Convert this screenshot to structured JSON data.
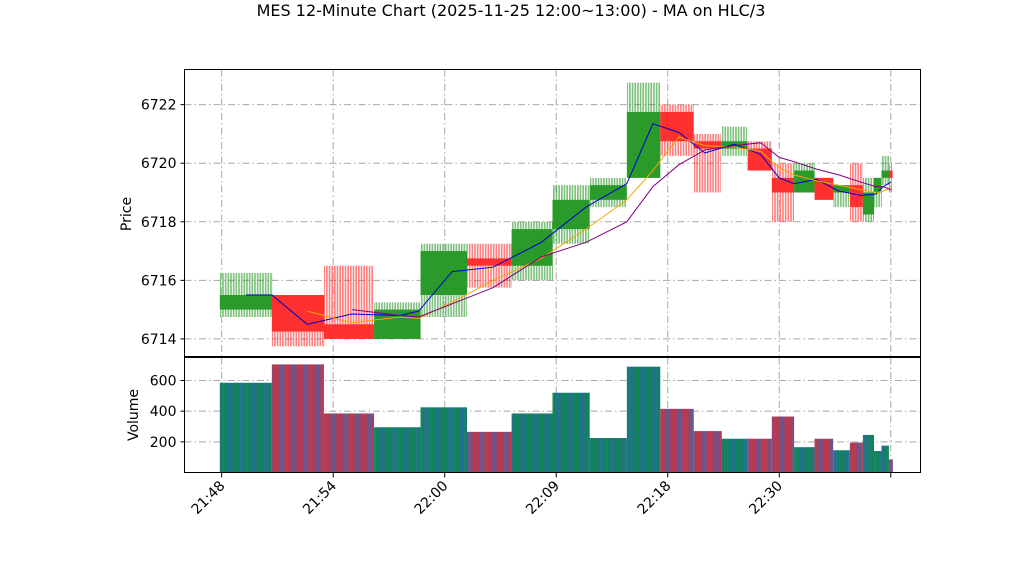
{
  "chart_data": {
    "type": "candlestick",
    "title": "MES 12-Minute Chart (2025-11-25 12:00~13:00) - MA on HLC/3",
    "price_panel": {
      "ylabel": "Price",
      "ylim": [
        6713.4,
        6723.2
      ],
      "yticks": [
        6714,
        6716,
        6718,
        6720,
        6722
      ],
      "grid": true
    },
    "volume_panel": {
      "ylabel": "Volume",
      "ylim": [
        0,
        750
      ],
      "yticks": [
        200,
        400,
        600
      ],
      "grid": true
    },
    "xlim": [
      -1,
      18.8
    ],
    "xticks": [
      {
        "x": 0,
        "label": "21:48"
      },
      {
        "x": 3,
        "label": "21:54"
      },
      {
        "x": 6,
        "label": "22:00"
      },
      {
        "x": 9,
        "label": "22:09"
      },
      {
        "x": 12,
        "label": "22:18"
      },
      {
        "x": 15,
        "label": "22:30"
      },
      {
        "x": 18,
        "label": ""
      }
    ],
    "candles": [
      {
        "x0": -0.05,
        "x1": 1.35,
        "open": 6715.0,
        "close": 6715.5,
        "high": 6716.25,
        "low": 6714.75,
        "volume": 585
      },
      {
        "x0": 1.35,
        "x1": 2.75,
        "open": 6715.5,
        "close": 6714.25,
        "high": 6715.5,
        "low": 6713.75,
        "volume": 705
      },
      {
        "x0": 2.75,
        "x1": 4.1,
        "open": 6714.5,
        "close": 6714.0,
        "high": 6716.5,
        "low": 6714.0,
        "volume": 385
      },
      {
        "x0": 4.1,
        "x1": 5.35,
        "open": 6714.0,
        "close": 6715.0,
        "high": 6715.25,
        "low": 6714.0,
        "volume": 295
      },
      {
        "x0": 5.35,
        "x1": 6.6,
        "open": 6715.5,
        "close": 6717.0,
        "high": 6717.25,
        "low": 6714.75,
        "volume": 425
      },
      {
        "x0": 6.6,
        "x1": 7.8,
        "open": 6716.75,
        "close": 6716.5,
        "high": 6717.25,
        "low": 6715.75,
        "volume": 265
      },
      {
        "x0": 7.8,
        "x1": 8.9,
        "open": 6716.5,
        "close": 6717.75,
        "high": 6718.0,
        "low": 6716.0,
        "volume": 385
      },
      {
        "x0": 8.9,
        "x1": 9.9,
        "open": 6717.75,
        "close": 6718.75,
        "high": 6719.25,
        "low": 6717.25,
        "volume": 520
      },
      {
        "x0": 9.9,
        "x1": 10.9,
        "open": 6718.75,
        "close": 6719.25,
        "high": 6719.5,
        "low": 6718.5,
        "volume": 225
      },
      {
        "x0": 10.9,
        "x1": 11.8,
        "open": 6719.5,
        "close": 6721.75,
        "high": 6722.75,
        "low": 6719.5,
        "volume": 690
      },
      {
        "x0": 11.8,
        "x1": 12.7,
        "open": 6721.75,
        "close": 6720.75,
        "high": 6722.0,
        "low": 6720.25,
        "volume": 415
      },
      {
        "x0": 12.7,
        "x1": 13.45,
        "open": 6720.75,
        "close": 6720.5,
        "high": 6721.0,
        "low": 6719.0,
        "volume": 270
      },
      {
        "x0": 13.45,
        "x1": 14.15,
        "open": 6720.5,
        "close": 6720.75,
        "high": 6721.25,
        "low": 6720.25,
        "volume": 220
      },
      {
        "x0": 14.15,
        "x1": 14.8,
        "open": 6720.5,
        "close": 6719.75,
        "high": 6720.75,
        "low": 6719.75,
        "volume": 220
      },
      {
        "x0": 14.8,
        "x1": 15.4,
        "open": 6719.5,
        "close": 6719.0,
        "high": 6720.0,
        "low": 6718.0,
        "volume": 365
      },
      {
        "x0": 15.4,
        "x1": 15.95,
        "open": 6719.0,
        "close": 6719.75,
        "high": 6720.0,
        "low": 6719.0,
        "volume": 165
      },
      {
        "x0": 15.95,
        "x1": 16.45,
        "open": 6719.5,
        "close": 6718.75,
        "high": 6719.5,
        "low": 6718.75,
        "volume": 220
      },
      {
        "x0": 16.45,
        "x1": 16.9,
        "open": 6719.0,
        "close": 6719.25,
        "high": 6719.25,
        "low": 6718.5,
        "volume": 145
      },
      {
        "x0": 16.9,
        "x1": 17.25,
        "open": 6719.25,
        "close": 6718.5,
        "high": 6720.0,
        "low": 6718.0,
        "volume": 195
      },
      {
        "x0": 17.25,
        "x1": 17.55,
        "open": 6718.25,
        "close": 6719.0,
        "high": 6719.5,
        "low": 6718.0,
        "volume": 245
      },
      {
        "x0": 17.55,
        "x1": 17.75,
        "open": 6719.0,
        "close": 6719.5,
        "high": 6719.5,
        "low": 6718.5,
        "volume": 140
      },
      {
        "x0": 17.75,
        "x1": 17.95,
        "open": 6719.5,
        "close": 6719.75,
        "high": 6720.25,
        "low": 6719.25,
        "volume": 175
      },
      {
        "x0": 17.95,
        "x1": 18.05,
        "open": 6719.75,
        "close": 6719.5,
        "high": 6720.0,
        "low": 6719.0,
        "volume": 85
      }
    ],
    "ma_lines": [
      {
        "color": "#0000cc",
        "points": [
          [
            0.65,
            6715.5
          ],
          [
            1.35,
            6715.5
          ],
          [
            2.3,
            6714.5
          ],
          [
            3.5,
            6714.85
          ],
          [
            4.8,
            6714.8
          ],
          [
            5.3,
            6714.95
          ],
          [
            6.2,
            6716.3
          ],
          [
            7.3,
            6716.45
          ],
          [
            8.6,
            6717.3
          ],
          [
            9.8,
            6718.5
          ],
          [
            10.9,
            6719.3
          ],
          [
            11.6,
            6721.35
          ],
          [
            12.3,
            6721.05
          ],
          [
            13.0,
            6720.35
          ],
          [
            13.8,
            6720.65
          ],
          [
            14.5,
            6720.3
          ],
          [
            15.0,
            6719.5
          ],
          [
            15.4,
            6719.3
          ],
          [
            16.0,
            6719.45
          ],
          [
            16.6,
            6719.05
          ],
          [
            17.2,
            6718.9
          ],
          [
            17.6,
            6718.95
          ],
          [
            17.8,
            6719.2
          ],
          [
            18.0,
            6719.35
          ]
        ]
      },
      {
        "color": "#f5a800",
        "points": [
          [
            2.3,
            6714.95
          ],
          [
            3.5,
            6714.55
          ],
          [
            4.8,
            6714.75
          ],
          [
            5.3,
            6714.7
          ],
          [
            6.2,
            6715.25
          ],
          [
            7.3,
            6716.0
          ],
          [
            8.6,
            6716.75
          ],
          [
            9.8,
            6717.75
          ],
          [
            10.9,
            6718.75
          ],
          [
            11.6,
            6719.75
          ],
          [
            12.3,
            6720.9
          ],
          [
            13.0,
            6720.6
          ],
          [
            13.8,
            6720.55
          ],
          [
            14.5,
            6720.4
          ],
          [
            15.0,
            6719.85
          ],
          [
            15.4,
            6719.6
          ],
          [
            16.0,
            6719.4
          ],
          [
            16.6,
            6719.25
          ],
          [
            17.2,
            6719.1
          ],
          [
            17.6,
            6719.0
          ],
          [
            17.8,
            6719.05
          ],
          [
            18.0,
            6719.15
          ]
        ]
      },
      {
        "color": "#800080",
        "points": [
          [
            3.5,
            6715.0
          ],
          [
            4.8,
            6714.8
          ],
          [
            5.3,
            6714.75
          ],
          [
            6.2,
            6715.2
          ],
          [
            7.3,
            6715.75
          ],
          [
            8.6,
            6716.8
          ],
          [
            9.8,
            6717.3
          ],
          [
            10.9,
            6718.0
          ],
          [
            11.6,
            6719.2
          ],
          [
            12.3,
            6719.95
          ],
          [
            13.0,
            6720.45
          ],
          [
            13.8,
            6720.6
          ],
          [
            14.5,
            6720.7
          ],
          [
            15.0,
            6720.2
          ],
          [
            15.4,
            6720.05
          ],
          [
            16.0,
            6719.8
          ],
          [
            16.6,
            6719.6
          ],
          [
            17.2,
            6719.35
          ],
          [
            17.6,
            6719.2
          ],
          [
            17.8,
            6719.2
          ],
          [
            18.0,
            6719.1
          ]
        ]
      }
    ],
    "colors": {
      "up": "#2a9a2a",
      "down": "#ff3030",
      "volume_up": "#10805a",
      "volume_down": "#b8384f",
      "volume_stripe": "#3a6fb8",
      "grid": "#a8a8a8"
    }
  }
}
